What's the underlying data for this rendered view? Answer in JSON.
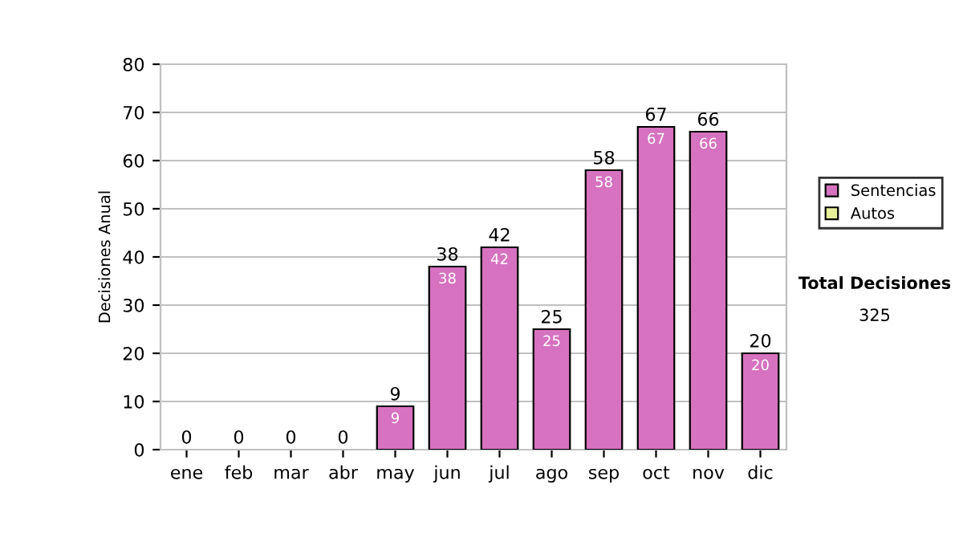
{
  "chart_data": {
    "type": "bar",
    "stacked": true,
    "ylabel": "Decisiones Anual",
    "categories": [
      "ene",
      "feb",
      "mar",
      "abr",
      "may",
      "jun",
      "jul",
      "ago",
      "sep",
      "oct",
      "nov",
      "dic"
    ],
    "series": [
      {
        "name": "Sentencias",
        "color": "#d672c0",
        "values": [
          0,
          0,
          0,
          0,
          9,
          38,
          42,
          25,
          58,
          67,
          66,
          20
        ],
        "value_labels": [
          null,
          null,
          null,
          null,
          "9",
          "38",
          "42",
          "25",
          "58",
          "67",
          "66",
          "20"
        ]
      },
      {
        "name": "Autos",
        "color": "#e6ee9a",
        "values": [
          0,
          0,
          0,
          0,
          0,
          0,
          0,
          0,
          0,
          0,
          0,
          0
        ]
      }
    ],
    "totals": [
      "0",
      "0",
      "0",
      "0",
      "9",
      "38",
      "42",
      "25",
      "58",
      "67",
      "66",
      "20"
    ],
    "ylim": [
      0,
      80
    ],
    "yticks": [
      0,
      10,
      20,
      30,
      40,
      50,
      60,
      70,
      80
    ],
    "grid": "y",
    "legend": "right",
    "annotations": [
      "Total Decisiones",
      "325"
    ]
  }
}
